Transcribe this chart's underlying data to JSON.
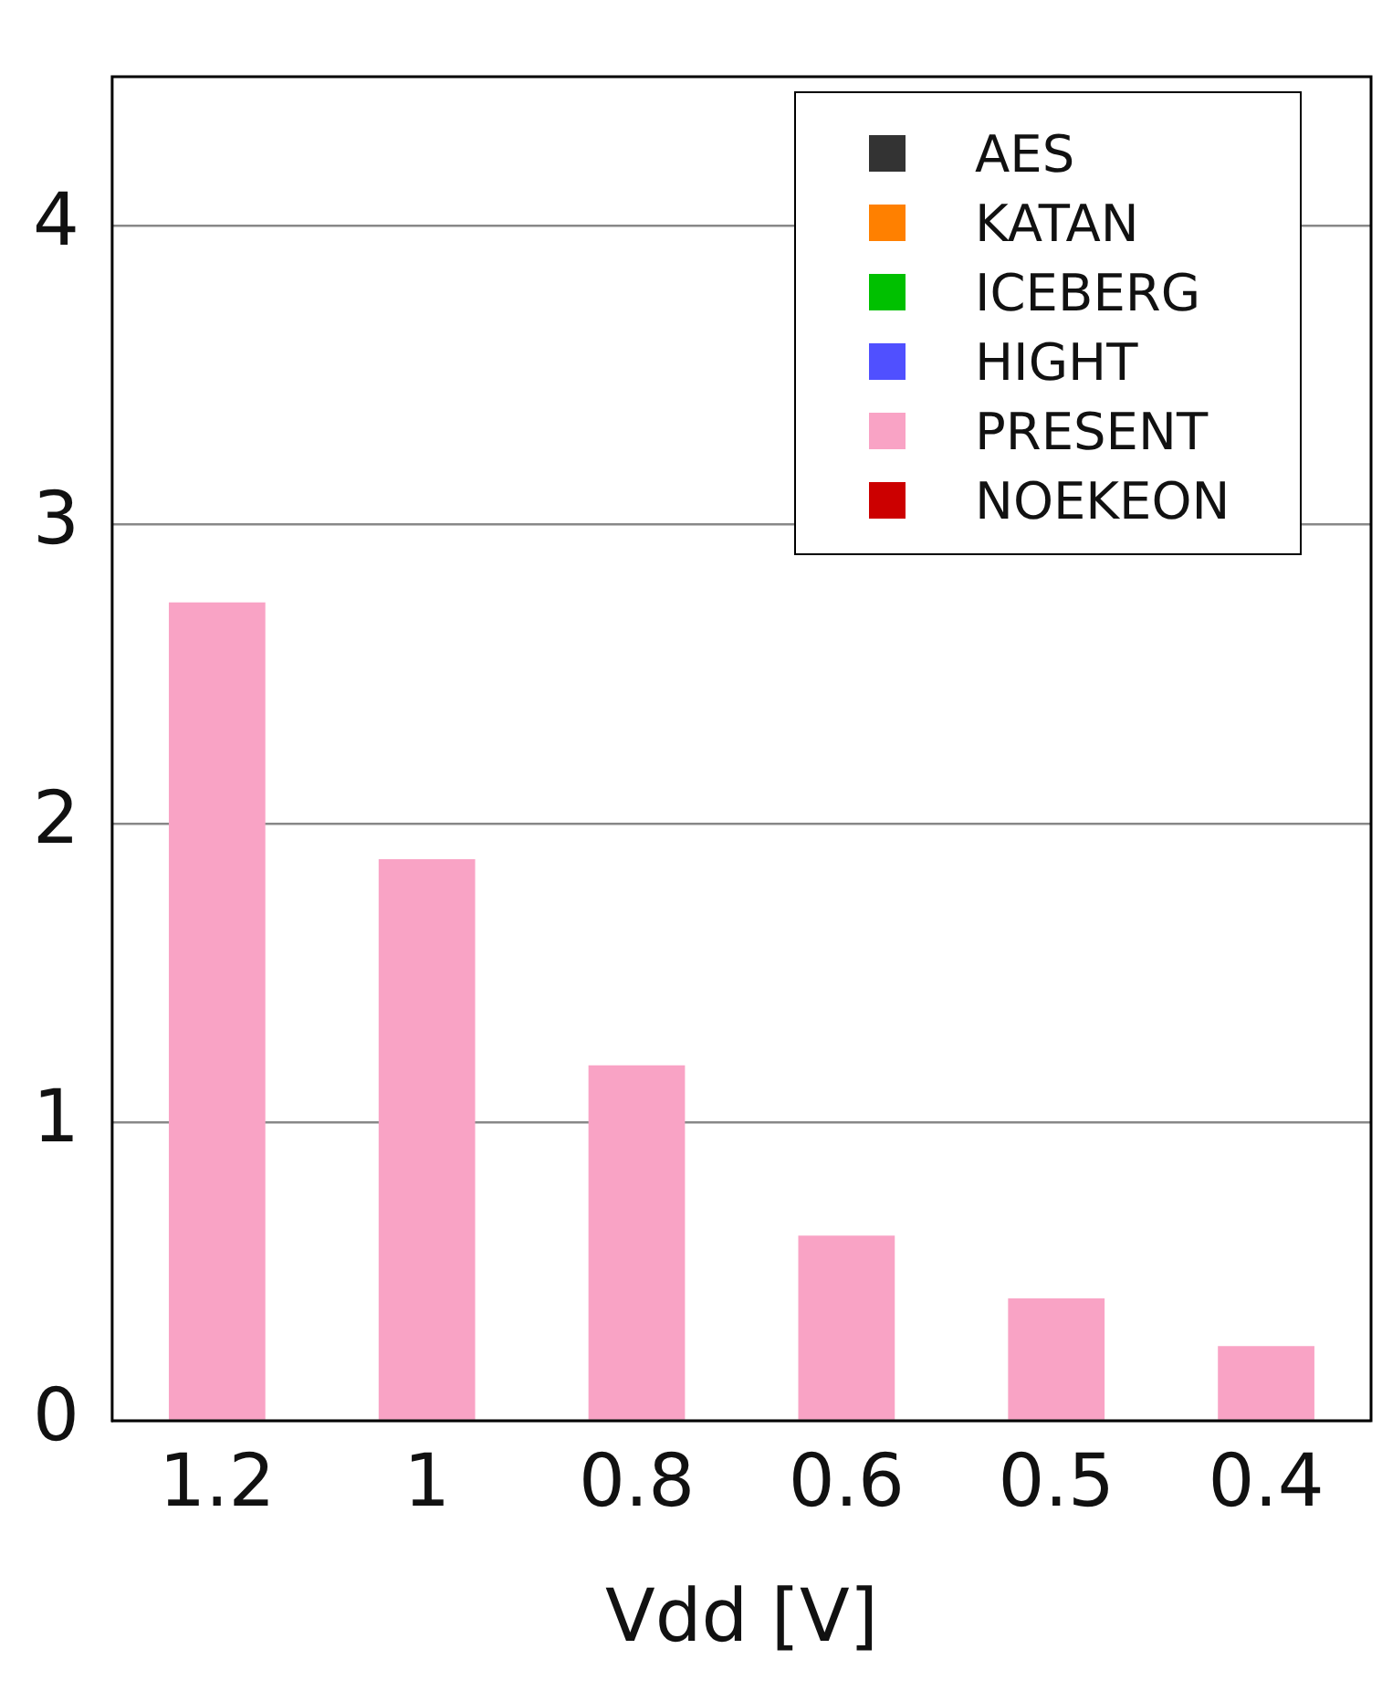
{
  "chart_data": {
    "type": "bar",
    "xlabel": "Vdd [V]",
    "categories": [
      "1.2",
      "1",
      "0.8",
      "0.6",
      "0.5",
      "0.4"
    ],
    "series": [
      {
        "name": "AES",
        "color": "#333333",
        "values": [
          null,
          null,
          null,
          null,
          null,
          null
        ]
      },
      {
        "name": "KATAN",
        "color": "#ff8000",
        "values": [
          null,
          null,
          null,
          null,
          null,
          null
        ]
      },
      {
        "name": "ICEBERG",
        "color": "#00c000",
        "values": [
          null,
          null,
          null,
          null,
          null,
          null
        ]
      },
      {
        "name": "HIGHT",
        "color": "#5050ff",
        "values": [
          null,
          null,
          null,
          null,
          null,
          null
        ]
      },
      {
        "name": "PRESENT",
        "color": "#f9a3c5",
        "values": [
          2.74,
          1.88,
          1.19,
          0.62,
          0.41,
          0.25
        ]
      },
      {
        "name": "NOEKEON",
        "color": "#cc0000",
        "values": [
          null,
          null,
          null,
          null,
          null,
          null
        ]
      }
    ],
    "ylim": [
      0,
      4.5
    ],
    "yticks": [
      0,
      1,
      2,
      3,
      4
    ],
    "grid": "y",
    "legend": "top right"
  }
}
